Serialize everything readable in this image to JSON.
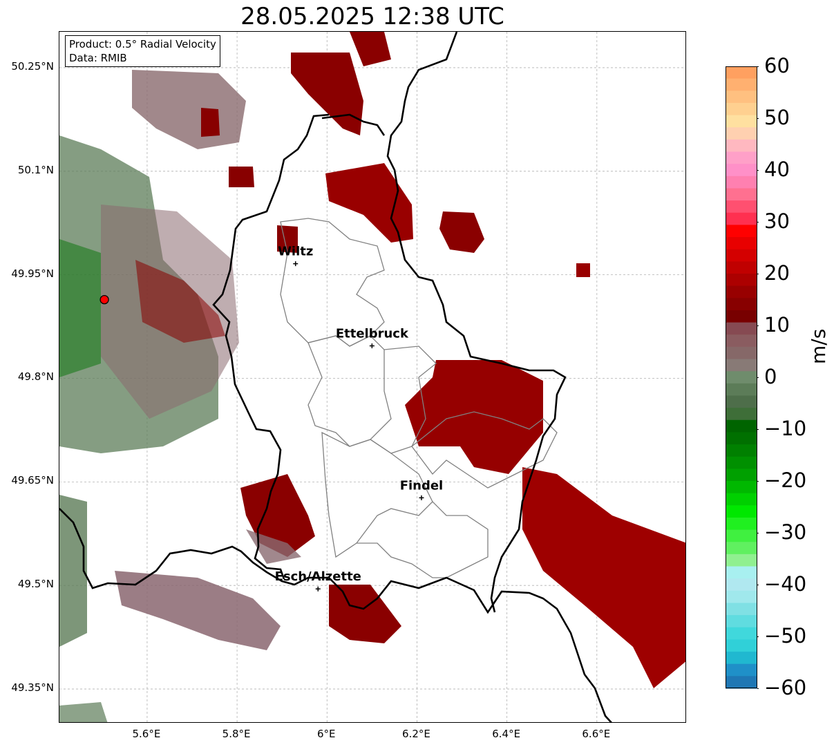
{
  "title": "28.05.2025 12:38 UTC",
  "info": {
    "product": "Product: 0.5° Radial Velocity",
    "source": "Data: RMIB"
  },
  "map": {
    "lat_ticks": [
      "50.25°N",
      "50.1°N",
      "49.95°N",
      "49.8°N",
      "49.65°N",
      "49.5°N",
      "49.35°N"
    ],
    "lon_ticks": [
      "5.6°E",
      "5.8°E",
      "6°E",
      "6.2°E",
      "6.4°E",
      "6.6°E"
    ],
    "cities": [
      {
        "name": "Wiltz",
        "lon": 5.93,
        "lat": 49.966
      },
      {
        "name": "Ettelbruck",
        "lon": 6.1,
        "lat": 49.847
      },
      {
        "name": "Findel",
        "lon": 6.21,
        "lat": 49.627
      },
      {
        "name": "Esch/Alzette",
        "lon": 5.98,
        "lat": 49.495
      }
    ],
    "radar_site": {
      "lon": 5.505,
      "lat": 49.914
    },
    "bounds": {
      "lon_min": 5.405,
      "lon_max": 6.8,
      "lat_min": 49.3,
      "lat_max": 50.302
    },
    "colors": {
      "country_border": "#000000",
      "canton_border": "#808080",
      "grid": "#b0b0b0",
      "radar_marker": "#ff0000"
    }
  },
  "colorbar": {
    "label": "m/s",
    "ticks": [
      "60",
      "50",
      "40",
      "30",
      "20",
      "10",
      "0",
      "−10",
      "−20",
      "−30",
      "−40",
      "−50",
      "−60"
    ],
    "min": -60,
    "max": 60,
    "colors_top_to_bottom": [
      "#ffa060",
      "#ffb070",
      "#ffc080",
      "#ffd090",
      "#ffe0a0",
      "#ffd0b0",
      "#ffb8c0",
      "#ffa0c8",
      "#ff90c8",
      "#ff80b0",
      "#ff7090",
      "#ff5070",
      "#ff3050",
      "#ff0000",
      "#e80000",
      "#d40000",
      "#c00000",
      "#ac0000",
      "#980000",
      "#880000",
      "#780000",
      "#864a52",
      "#8a5c60",
      "#866868",
      "#887a76",
      "#6f8c6c",
      "#5c7c58",
      "#4e6e4a",
      "#3e6e38",
      "#006400",
      "#007000",
      "#008000",
      "#009000",
      "#00a000",
      "#00b800",
      "#00d000",
      "#00e800",
      "#20f020",
      "#40f040",
      "#60f060",
      "#90f090",
      "#a8f0f0",
      "#b0e8f0",
      "#a0e8ec",
      "#80e0e4",
      "#60dce0",
      "#40d8dc",
      "#30d0d8",
      "#20b8d0",
      "#1f90c8",
      "#1f77b4"
    ]
  }
}
